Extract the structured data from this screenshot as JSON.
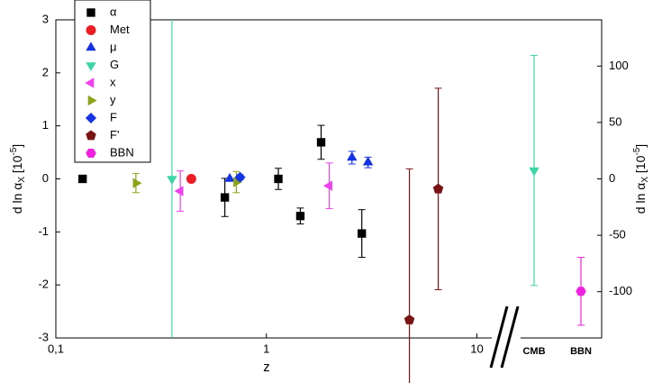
{
  "chart_data": {
    "type": "scatter",
    "xlabel": "z",
    "ylabel": [
      "d ln α",
      "X",
      " [10",
      "-5",
      "]"
    ],
    "y2label": [
      "d ln α",
      "X",
      " [10",
      "-5",
      "]"
    ],
    "xscale": "log",
    "xlim": [
      0.1,
      12
    ],
    "xticks": [
      {
        "value": 0.1,
        "label": "0,1"
      },
      1,
      10
    ],
    "x_categories": [
      "CMB",
      "BBN"
    ],
    "ylim": [
      -3,
      3
    ],
    "yticks": [
      -3,
      -2,
      -1,
      0,
      1,
      2,
      3
    ],
    "y2lim": [
      -141,
      141
    ],
    "y2ticks": [
      -100,
      -50,
      0,
      50,
      100
    ],
    "series": [
      {
        "name": "α",
        "color": "#000000",
        "marker": "square",
        "x": [
          0.134,
          0.635,
          1.14,
          1.45,
          1.82,
          2.84
        ],
        "values": [
          0,
          -0.35,
          0,
          -0.7,
          0.69,
          -1.03
        ],
        "errors": [
          0,
          0.36,
          0.2,
          0.15,
          0.32,
          0.45
        ]
      },
      {
        "name": "Met",
        "color": "#ee1c24",
        "marker": "circle",
        "x": [
          0.44
        ],
        "values": [
          0
        ],
        "errors": [
          0
        ]
      },
      {
        "name": "μ",
        "color": "#1432e6",
        "marker": "triangle-up",
        "x": [
          0.67,
          2.55,
          3.04
        ],
        "values": [
          0,
          0.4,
          0.31
        ],
        "errors": [
          0,
          0.12,
          0.1
        ]
      },
      {
        "name": "G",
        "color": "#3ed6a6",
        "marker": "triangle-down",
        "x": [
          0.356,
          "CMB"
        ],
        "values": [
          0,
          0.16
        ],
        "errors": [
          3,
          2.17
        ]
      },
      {
        "name": "x",
        "color": "#f040f0",
        "marker": "triangle-left",
        "x": [
          0.39,
          1.99
        ],
        "values": [
          -0.23,
          -0.13
        ],
        "errors": [
          0.38,
          0.43
        ]
      },
      {
        "name": "y",
        "color": "#8ea21a",
        "marker": "triangle-right",
        "x": [
          0.24,
          0.72
        ],
        "values": [
          -0.08,
          -0.06
        ],
        "errors": [
          0.18,
          0.2
        ]
      },
      {
        "name": "F",
        "color": "#1432e6",
        "marker": "diamond",
        "x": [
          0.75
        ],
        "values": [
          0.03
        ],
        "errors": [
          0.05
        ]
      },
      {
        "name": "F'",
        "color": "#7a1414",
        "marker": "pentagon",
        "x": [
          4.78,
          6.55
        ],
        "values": [
          -2.66,
          -0.19
        ],
        "errors": [
          2.85,
          1.9
        ]
      },
      {
        "name": "BBN",
        "color": "#f020e0",
        "marker": "hexagon",
        "x": [
          "BBN"
        ],
        "values": [
          -2.12
        ],
        "errors": [
          0.64
        ]
      }
    ]
  }
}
